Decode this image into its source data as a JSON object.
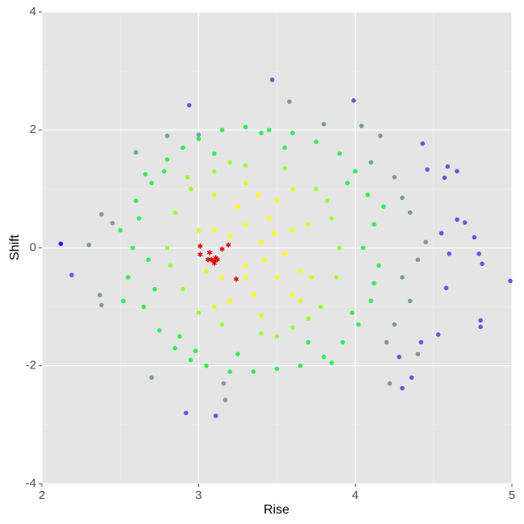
{
  "chart_data": {
    "type": "scatter",
    "x_label": "Rise",
    "y_label": "Shift",
    "xlim": [
      2,
      5
    ],
    "ylim": [
      -4,
      4
    ],
    "xticks": [
      2,
      3,
      4,
      5
    ],
    "yticks": [
      -4,
      -2,
      0,
      2,
      4
    ],
    "grid": true,
    "series": [
      {
        "color": "#33ee55",
        "marker": "circle",
        "x": [
          2.5,
          2.55,
          2.6,
          2.65,
          2.7,
          2.68,
          2.75,
          2.8,
          2.85,
          2.9,
          2.95,
          3.0,
          3.05,
          3.15,
          3.2,
          3.3,
          3.35,
          3.45,
          3.5,
          3.6,
          3.65,
          3.75,
          3.8,
          3.9,
          3.92,
          4.0,
          4.02,
          4.08,
          4.1,
          4.12,
          4.15,
          2.58,
          2.62,
          2.72,
          2.78,
          4.05,
          3.95,
          3.98,
          2.88,
          3.1,
          3.25,
          3.55,
          3.7,
          2.52,
          4.18,
          4.12,
          2.66,
          3.85,
          3.4,
          2.98
        ],
        "y": [
          0.3,
          -0.5,
          0.8,
          -1.0,
          1.1,
          -0.2,
          -1.4,
          1.5,
          -1.7,
          1.7,
          -1.9,
          1.85,
          -2.0,
          2.0,
          -2.1,
          2.05,
          -2.1,
          2.0,
          -2.05,
          1.95,
          -2.0,
          1.8,
          -1.85,
          1.6,
          -1.6,
          1.3,
          -1.3,
          0.9,
          -0.9,
          0.4,
          -0.3,
          0.0,
          0.5,
          -0.7,
          1.3,
          0.0,
          1.1,
          -1.1,
          -1.5,
          1.6,
          -1.8,
          1.7,
          -1.6,
          -0.9,
          0.7,
          -0.6,
          1.25,
          -1.95,
          1.95,
          -1.75
        ]
      },
      {
        "color": "#7a9a9e",
        "marker": "circle",
        "x": [
          2.37,
          2.38,
          2.3,
          2.38,
          2.45,
          2.6,
          2.7,
          3.17,
          3.16,
          4.04,
          4.16,
          4.22,
          4.1,
          4.25,
          4.3,
          4.35,
          4.3,
          4.25,
          4.35,
          4.4,
          4.45,
          4.2,
          2.8,
          3.0,
          3.58,
          3.8,
          4.4
        ],
        "y": [
          -0.8,
          0.57,
          0.05,
          -0.97,
          0.42,
          1.62,
          -2.2,
          -2.58,
          -2.3,
          2.07,
          1.9,
          -2.3,
          1.45,
          1.2,
          0.85,
          0.6,
          -0.5,
          -1.3,
          -0.9,
          -0.2,
          0.1,
          -1.6,
          1.9,
          1.92,
          2.48,
          2.1,
          -1.8
        ]
      },
      {
        "color": "#99ff33",
        "marker": "circle",
        "x": [
          2.85,
          2.9,
          2.95,
          3.0,
          3.1,
          3.15,
          3.3,
          3.4,
          3.55,
          3.6,
          3.75,
          3.78,
          3.85,
          3.88,
          2.8,
          3.9,
          2.82,
          3.82,
          3.2,
          3.5,
          2.93,
          3.7
        ],
        "y": [
          0.6,
          -0.7,
          1.0,
          -1.1,
          1.3,
          -1.3,
          1.4,
          -1.45,
          1.35,
          -1.35,
          1.0,
          -1.0,
          0.5,
          -0.5,
          0.0,
          0.0,
          -0.3,
          0.8,
          1.45,
          -1.5,
          1.2,
          -1.2
        ]
      },
      {
        "color": "#ddff11",
        "marker": "circle",
        "x": [
          3.0,
          3.05,
          3.7,
          3.72,
          3.3,
          3.4,
          3.1,
          3.6,
          3.1,
          3.65
        ],
        "y": [
          0.3,
          -0.4,
          0.4,
          -0.5,
          1.1,
          -1.15,
          0.9,
          1.0,
          -1.0,
          -0.9
        ]
      },
      {
        "color": "#ffff00",
        "marker": "circle",
        "x": [
          3.2,
          3.3,
          3.4,
          3.5,
          3.45,
          3.35,
          3.6,
          3.25,
          3.55,
          3.15,
          3.3,
          3.42,
          3.5,
          3.65,
          3.2,
          3.38,
          3.6,
          3.1,
          3.3,
          3.48
        ],
        "y": [
          0.2,
          -0.3,
          0.1,
          -0.5,
          0.5,
          -0.8,
          0.3,
          0.7,
          -0.1,
          -0.5,
          0.4,
          -0.2,
          0.8,
          -0.4,
          -0.9,
          0.9,
          -0.8,
          0.3,
          -0.5,
          0.25
        ]
      },
      {
        "color": "#6a55e0",
        "marker": "circle",
        "x": [
          2.19,
          4.99,
          4.8,
          4.8,
          4.3,
          4.36,
          4.59,
          4.65,
          4.43,
          4.46,
          4.57,
          4.76,
          4.79,
          4.81,
          4.7,
          4.65,
          4.6,
          4.55,
          4.58,
          4.53,
          4.42,
          4.28,
          2.92,
          3.11,
          3.47,
          3.99,
          2.94
        ],
        "y": [
          -0.46,
          -0.56,
          -1.23,
          -1.34,
          -2.38,
          -2.2,
          1.38,
          1.3,
          1.77,
          1.33,
          1.19,
          0.18,
          -0.1,
          -0.27,
          0.43,
          0.48,
          -0.1,
          0.25,
          -0.68,
          -1.47,
          -1.6,
          -1.85,
          -2.8,
          -2.85,
          2.85,
          2.5,
          2.42
        ]
      },
      {
        "color": "#4b00ff",
        "marker": "circle",
        "x": [
          2.12
        ],
        "y": [
          0.07
        ]
      },
      {
        "color": "#dd0000",
        "marker": "asterisk",
        "x": [
          3.01,
          3.01,
          3.07,
          3.08,
          3.1,
          3.12,
          3.1,
          3.15,
          3.19,
          3.24,
          3.06,
          3.11
        ],
        "y": [
          0.03,
          -0.11,
          -0.08,
          -0.2,
          -0.22,
          -0.2,
          -0.26,
          -0.02,
          0.05,
          -0.53,
          -0.2,
          -0.17
        ]
      }
    ]
  }
}
